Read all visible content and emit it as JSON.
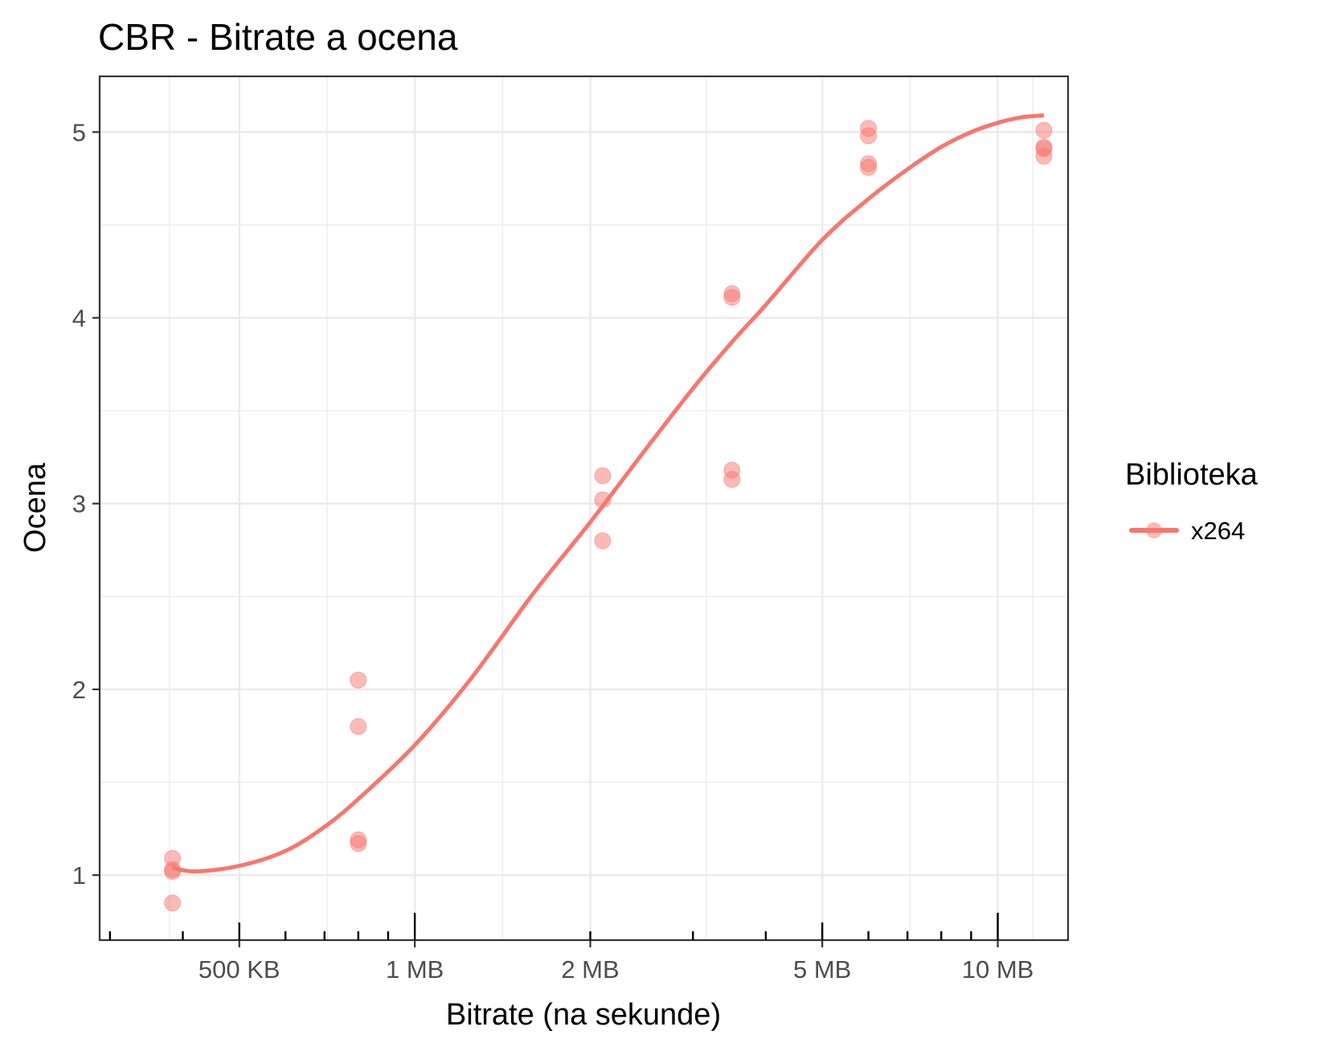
{
  "chart_data": {
    "type": "scatter",
    "title": "CBR - Bitrate a ocena",
    "xlabel": "Bitrate  (na sekunde)",
    "ylabel": "Ocena",
    "x_scale": "log10",
    "x_unit": "bytes per second",
    "xlim": [
      288000,
      13200000
    ],
    "ylim": [
      0.65,
      5.3
    ],
    "x_ticks": [
      {
        "value": 500000,
        "label": "500 KB"
      },
      {
        "value": 1000000,
        "label": "1 MB"
      },
      {
        "value": 2000000,
        "label": "2 MB"
      },
      {
        "value": 5000000,
        "label": "5 MB"
      },
      {
        "value": 10000000,
        "label": "10 MB"
      }
    ],
    "y_ticks": [
      {
        "value": 1,
        "label": "1"
      },
      {
        "value": 2,
        "label": "2"
      },
      {
        "value": 3,
        "label": "3"
      },
      {
        "value": 4,
        "label": "4"
      },
      {
        "value": 5,
        "label": "5"
      }
    ],
    "grid": true,
    "legend": {
      "title": "Biblioteka",
      "position": "right"
    },
    "series": [
      {
        "name": "x264",
        "color": "#F8766D",
        "points": [
          {
            "x": 384000,
            "y": 1.09
          },
          {
            "x": 384000,
            "y": 1.03
          },
          {
            "x": 384000,
            "y": 1.02
          },
          {
            "x": 384000,
            "y": 0.85
          },
          {
            "x": 800000,
            "y": 2.05
          },
          {
            "x": 800000,
            "y": 1.8
          },
          {
            "x": 800000,
            "y": 1.19
          },
          {
            "x": 800000,
            "y": 1.17
          },
          {
            "x": 2100000,
            "y": 3.15
          },
          {
            "x": 2100000,
            "y": 3.02
          },
          {
            "x": 2100000,
            "y": 2.8
          },
          {
            "x": 3500000,
            "y": 4.13
          },
          {
            "x": 3500000,
            "y": 4.11
          },
          {
            "x": 3500000,
            "y": 3.18
          },
          {
            "x": 3500000,
            "y": 3.13
          },
          {
            "x": 6000000,
            "y": 5.02
          },
          {
            "x": 6000000,
            "y": 4.98
          },
          {
            "x": 6000000,
            "y": 4.83
          },
          {
            "x": 6000000,
            "y": 4.81
          },
          {
            "x": 12000000,
            "y": 5.01
          },
          {
            "x": 12000000,
            "y": 4.92
          },
          {
            "x": 12000000,
            "y": 4.91
          },
          {
            "x": 12000000,
            "y": 4.87
          }
        ],
        "smooth": [
          {
            "x": 384000,
            "y": 1.04
          },
          {
            "x": 420000,
            "y": 1.02
          },
          {
            "x": 500000,
            "y": 1.05
          },
          {
            "x": 600000,
            "y": 1.13
          },
          {
            "x": 700000,
            "y": 1.26
          },
          {
            "x": 800000,
            "y": 1.41
          },
          {
            "x": 1000000,
            "y": 1.7
          },
          {
            "x": 1250000,
            "y": 2.06
          },
          {
            "x": 1600000,
            "y": 2.52
          },
          {
            "x": 2000000,
            "y": 2.9
          },
          {
            "x": 2500000,
            "y": 3.3
          },
          {
            "x": 3000000,
            "y": 3.62
          },
          {
            "x": 3500000,
            "y": 3.87
          },
          {
            "x": 4000000,
            "y": 4.07
          },
          {
            "x": 5000000,
            "y": 4.42
          },
          {
            "x": 6000000,
            "y": 4.64
          },
          {
            "x": 7000000,
            "y": 4.8
          },
          {
            "x": 8000000,
            "y": 4.92
          },
          {
            "x": 9000000,
            "y": 5.0
          },
          {
            "x": 10000000,
            "y": 5.05
          },
          {
            "x": 11000000,
            "y": 5.08
          },
          {
            "x": 12000000,
            "y": 5.09
          }
        ]
      }
    ]
  }
}
